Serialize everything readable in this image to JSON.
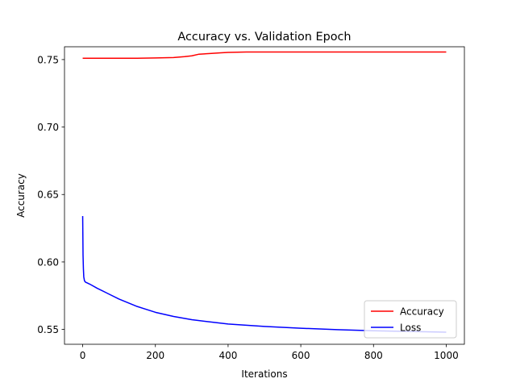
{
  "chart_data": {
    "type": "line",
    "title": "Accuracy vs. Validation Epoch",
    "xlabel": "Iterations",
    "ylabel": "Accuracy",
    "xlim": [
      -50,
      1050
    ],
    "ylim": [
      0.539,
      0.7595
    ],
    "xticks": [
      0,
      200,
      400,
      600,
      800,
      1000
    ],
    "yticks": [
      0.55,
      0.6,
      0.65,
      0.7,
      0.75
    ],
    "xtick_labels": [
      "0",
      "200",
      "400",
      "600",
      "800",
      "1000"
    ],
    "ytick_labels": [
      "0.55",
      "0.60",
      "0.65",
      "0.70",
      "0.75"
    ],
    "grid": false,
    "legend_position": "lower-right",
    "series": [
      {
        "name": "Accuracy",
        "color": "#ff0000",
        "x": [
          0,
          50,
          100,
          150,
          200,
          250,
          280,
          300,
          320,
          350,
          380,
          400,
          450,
          500,
          600,
          700,
          800,
          900,
          1000
        ],
        "y": [
          0.751,
          0.751,
          0.751,
          0.751,
          0.7512,
          0.7515,
          0.7522,
          0.7528,
          0.754,
          0.7545,
          0.755,
          0.7553,
          0.7556,
          0.7556,
          0.7556,
          0.7556,
          0.7556,
          0.7556,
          0.7556
        ]
      },
      {
        "name": "Loss",
        "color": "#0000ff",
        "x": [
          0,
          1,
          2,
          3,
          5,
          8,
          12,
          20,
          40,
          70,
          100,
          150,
          200,
          250,
          300,
          400,
          500,
          600,
          700,
          800,
          900,
          1000
        ],
        "y": [
          0.634,
          0.605,
          0.595,
          0.589,
          0.586,
          0.585,
          0.5845,
          0.5835,
          0.5805,
          0.5765,
          0.5725,
          0.567,
          0.5627,
          0.5596,
          0.5572,
          0.554,
          0.5522,
          0.5509,
          0.5498,
          0.549,
          0.5485,
          0.548
        ]
      }
    ]
  }
}
